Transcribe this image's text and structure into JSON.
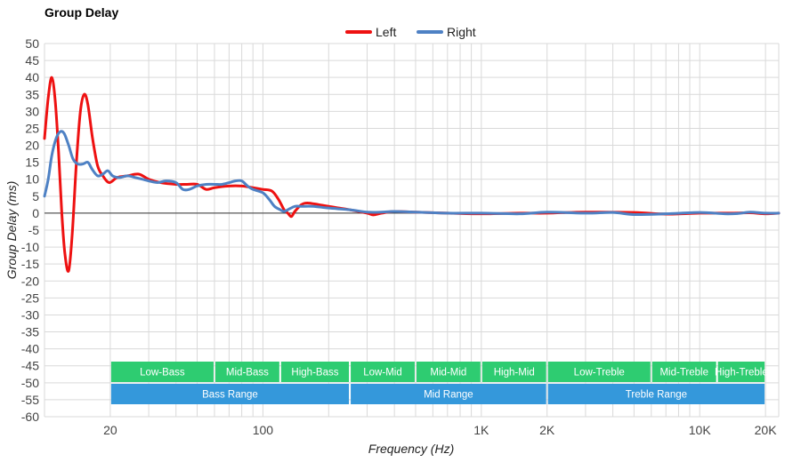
{
  "chart_data": {
    "type": "line",
    "title": "Group Delay",
    "xlabel": "Frequency (Hz)",
    "ylabel": "Group Delay (ms)",
    "xscale": "log",
    "xlim": [
      10,
      23000
    ],
    "ylim": [
      -60,
      50
    ],
    "ytick_step": 5,
    "xticks": [
      {
        "value": 20,
        "label": "20"
      },
      {
        "value": 100,
        "label": "100"
      },
      {
        "value": 1000,
        "label": "1K"
      },
      {
        "value": 2000,
        "label": "2K"
      },
      {
        "value": 10000,
        "label": "10K"
      },
      {
        "value": 20000,
        "label": "20K"
      }
    ],
    "grid": true,
    "legend_position": "top-center",
    "series": [
      {
        "name": "Left",
        "color": "#ee1111",
        "points": [
          [
            10,
            22
          ],
          [
            10.4,
            34
          ],
          [
            10.8,
            40
          ],
          [
            11.2,
            33
          ],
          [
            11.6,
            18
          ],
          [
            12,
            0
          ],
          [
            12.4,
            -12
          ],
          [
            12.9,
            -17
          ],
          [
            13.4,
            -6
          ],
          [
            14,
            15
          ],
          [
            14.6,
            30
          ],
          [
            15.2,
            35
          ],
          [
            15.8,
            32
          ],
          [
            16.6,
            22
          ],
          [
            17.5,
            14
          ],
          [
            18.5,
            11
          ],
          [
            19.8,
            9
          ],
          [
            21.5,
            10.5
          ],
          [
            24,
            11
          ],
          [
            27,
            11.5
          ],
          [
            30,
            10
          ],
          [
            34,
            9
          ],
          [
            40,
            8.5
          ],
          [
            45,
            8.5
          ],
          [
            50,
            8.5
          ],
          [
            55,
            7
          ],
          [
            60,
            7.5
          ],
          [
            70,
            8
          ],
          [
            80,
            8
          ],
          [
            90,
            7.5
          ],
          [
            100,
            7
          ],
          [
            110,
            6.5
          ],
          [
            118,
            4
          ],
          [
            125,
            1
          ],
          [
            130,
            0
          ],
          [
            135,
            -1
          ],
          [
            140,
            0.5
          ],
          [
            150,
            2.5
          ],
          [
            160,
            3
          ],
          [
            180,
            2.5
          ],
          [
            200,
            2
          ],
          [
            250,
            1
          ],
          [
            300,
            0
          ],
          [
            320,
            -0.5
          ],
          [
            350,
            0
          ],
          [
            400,
            0.5
          ],
          [
            500,
            0.3
          ],
          [
            700,
            0
          ],
          [
            1000,
            -0.2
          ],
          [
            1500,
            0
          ],
          [
            2000,
            0
          ],
          [
            3000,
            0.3
          ],
          [
            5000,
            0.2
          ],
          [
            7000,
            -0.3
          ],
          [
            10000,
            0
          ],
          [
            14000,
            0
          ],
          [
            17000,
            0.1
          ],
          [
            20000,
            -0.2
          ],
          [
            23000,
            0
          ]
        ]
      },
      {
        "name": "Right",
        "color": "#4e81c4",
        "points": [
          [
            10,
            5
          ],
          [
            10.4,
            10
          ],
          [
            10.8,
            17
          ],
          [
            11.3,
            22
          ],
          [
            11.8,
            24
          ],
          [
            12.3,
            23.5
          ],
          [
            12.9,
            20
          ],
          [
            13.5,
            16
          ],
          [
            14.2,
            14.5
          ],
          [
            15,
            14.5
          ],
          [
            15.8,
            15
          ],
          [
            16.5,
            13
          ],
          [
            17.5,
            11
          ],
          [
            18.5,
            11.5
          ],
          [
            19.5,
            12.5
          ],
          [
            20.5,
            11
          ],
          [
            22,
            10.5
          ],
          [
            24,
            11
          ],
          [
            26,
            10.5
          ],
          [
            28,
            10
          ],
          [
            30,
            9.5
          ],
          [
            33,
            9
          ],
          [
            36,
            9.5
          ],
          [
            40,
            9
          ],
          [
            43,
            7
          ],
          [
            46,
            7
          ],
          [
            50,
            8
          ],
          [
            55,
            8.5
          ],
          [
            60,
            8.5
          ],
          [
            65,
            8.5
          ],
          [
            70,
            9
          ],
          [
            75,
            9.5
          ],
          [
            80,
            9.5
          ],
          [
            85,
            8
          ],
          [
            90,
            7
          ],
          [
            100,
            6
          ],
          [
            107,
            4
          ],
          [
            113,
            2
          ],
          [
            120,
            1
          ],
          [
            125,
            0.5
          ],
          [
            130,
            1
          ],
          [
            140,
            2
          ],
          [
            150,
            2
          ],
          [
            170,
            2
          ],
          [
            200,
            1.5
          ],
          [
            250,
            1
          ],
          [
            300,
            0.3
          ],
          [
            350,
            0.3
          ],
          [
            400,
            0.5
          ],
          [
            500,
            0.3
          ],
          [
            700,
            0
          ],
          [
            1000,
            0
          ],
          [
            1500,
            -0.2
          ],
          [
            2000,
            0.3
          ],
          [
            3000,
            0
          ],
          [
            4000,
            0.2
          ],
          [
            5000,
            -0.4
          ],
          [
            7000,
            -0.2
          ],
          [
            10000,
            0.2
          ],
          [
            13000,
            -0.2
          ],
          [
            15000,
            -0.1
          ],
          [
            17000,
            0.3
          ],
          [
            20000,
            0
          ],
          [
            23000,
            0
          ]
        ]
      }
    ],
    "bands_top": [
      {
        "label": "Low-Bass",
        "from": 20,
        "to": 60
      },
      {
        "label": "Mid-Bass",
        "from": 60,
        "to": 120
      },
      {
        "label": "High-Bass",
        "from": 120,
        "to": 250
      },
      {
        "label": "Low-Mid",
        "from": 250,
        "to": 500
      },
      {
        "label": "Mid-Mid",
        "from": 500,
        "to": 1000
      },
      {
        "label": "High-Mid",
        "from": 1000,
        "to": 2000
      },
      {
        "label": "Low-Treble",
        "from": 2000,
        "to": 6000
      },
      {
        "label": "Mid-Treble",
        "from": 6000,
        "to": 12000
      },
      {
        "label": "High-Treble",
        "from": 12000,
        "to": 20000
      }
    ],
    "bands_bottom": [
      {
        "label": "Bass Range",
        "from": 20,
        "to": 250
      },
      {
        "label": "Mid Range",
        "from": 250,
        "to": 2000
      },
      {
        "label": "Treble Range",
        "from": 2000,
        "to": 20000
      }
    ],
    "band_colors": {
      "top": "#2ecc71",
      "bottom": "#3498db"
    }
  }
}
